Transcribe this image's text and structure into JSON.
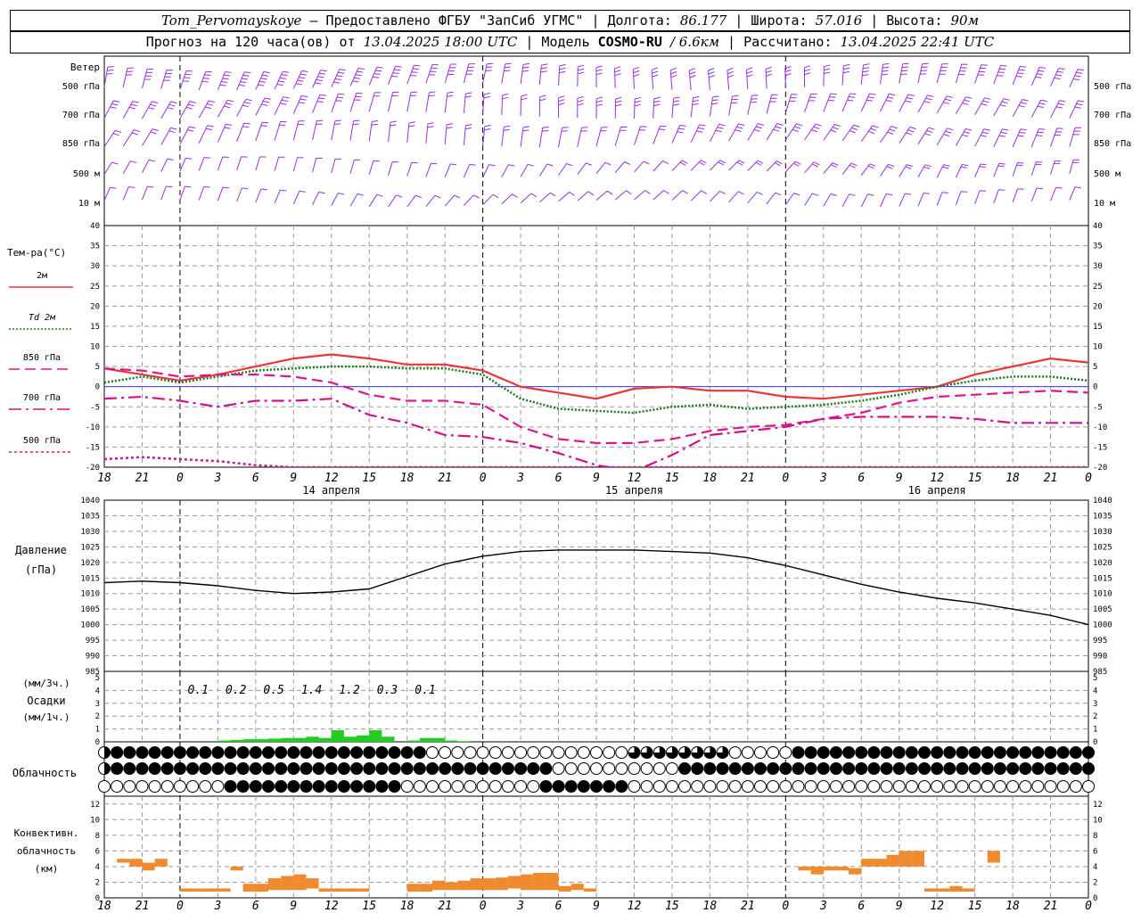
{
  "header": {
    "station": "Tom_Pervomayskoye",
    "provided_by": "– Предоставлено ФГБУ \"ЗапСиб УГМС\" |",
    "lon_label": "Долгота:",
    "lon": "86.177",
    "lat_label": "| Широта:",
    "lat": "57.016",
    "alt_label": "| Высота:",
    "alt": "90м",
    "forecast_label": "Прогноз на 120 часа(ов) от",
    "forecast_start": "13.04.2025 18:00 UTC",
    "model_label": "| Модель",
    "model": "COSMO-RU",
    "model_res": "/ 6.6км",
    "computed_label": "| Рассчитано:",
    "computed": "13.04.2025 22:41 UTC"
  },
  "time_axis": {
    "hour_labels": [
      "18",
      "21",
      "0",
      "3",
      "6",
      "9",
      "12",
      "15",
      "18",
      "21",
      "0",
      "3",
      "6",
      "9",
      "12",
      "15",
      "18",
      "21",
      "0",
      "3",
      "6",
      "9",
      "12",
      "15",
      "18",
      "21",
      "0"
    ],
    "day_labels": [
      "14 апреля",
      "15 апреля",
      "16 апреля"
    ]
  },
  "wind_panel": {
    "title": "Ветер",
    "levels": [
      "500 гПа",
      "700 гПа",
      "850 гПа",
      "500 м",
      "10 м"
    ],
    "color": "#9a2fe0"
  },
  "colors": {
    "t2m": "#e8353a",
    "td2m": "#1a7a1a",
    "t850": "#e0148c",
    "t700": "#d1118a",
    "t500": "#c81a8a",
    "pressure": "#000000",
    "precip": "#22cc22",
    "conv": "#ef8a2e",
    "zero_line": "#3a3aff"
  },
  "temp_legend": [
    {
      "label": "2м",
      "style": "t2m"
    },
    {
      "label": "Td 2м",
      "style": "td2m"
    },
    {
      "label": "850 гПа",
      "style": "t850"
    },
    {
      "label": "700 гПа",
      "style": "t700"
    },
    {
      "label": "500 гПа",
      "style": "t500"
    }
  ],
  "pressure_title": [
    "Давление",
    "(гПа)"
  ],
  "precip_title": [
    "(мм/3ч.)",
    "Осадки",
    "(мм/1ч.)"
  ],
  "precip_3h_labels": [
    "0.1",
    "0.2",
    "0.5",
    "1.4",
    "1.2",
    "0.3",
    "0.1"
  ],
  "cloud_title": "Облачность",
  "conv_title": [
    "Конвективн.",
    "облачность",
    "(км)"
  ],
  "chart_data": [
    {
      "type": "line",
      "name": "temperature",
      "ylabel": "Тем-ра(°C)",
      "ylim": [
        -20,
        40
      ],
      "yticks": [
        -20,
        -15,
        -10,
        -5,
        0,
        5,
        10,
        15,
        20,
        25,
        30,
        35,
        40
      ],
      "x_hours": [
        0,
        3,
        6,
        9,
        12,
        15,
        18,
        21,
        24,
        27,
        30,
        33,
        36,
        39,
        42,
        45,
        48,
        51,
        54,
        57,
        60,
        63,
        66,
        69,
        72,
        75,
        78
      ],
      "series": [
        {
          "name": "2м",
          "values": [
            4.5,
            3.0,
            1.5,
            3.0,
            5.0,
            7.0,
            8.0,
            7.0,
            5.5,
            5.5,
            4.0,
            0.0,
            -1.5,
            -3.0,
            -0.5,
            0.0,
            -1.0,
            -1.0,
            -2.5,
            -3.0,
            -2.0,
            -1.0,
            0.0,
            3.0,
            5.0,
            7.0,
            6.0
          ]
        },
        {
          "name": "Td 2м",
          "values": [
            1.0,
            2.5,
            1.0,
            2.5,
            4.0,
            4.5,
            5.0,
            5.0,
            4.5,
            4.5,
            3.0,
            -3.0,
            -5.5,
            -6.0,
            -6.5,
            -5.0,
            -4.5,
            -5.5,
            -5.0,
            -4.5,
            -3.5,
            -2.0,
            0.0,
            1.5,
            2.5,
            2.5,
            1.5
          ]
        },
        {
          "name": "850 гПа",
          "values": [
            4.5,
            4.0,
            2.5,
            3.0,
            3.0,
            2.5,
            1.0,
            -2.0,
            -3.5,
            -3.5,
            -4.5,
            -10.0,
            -13.0,
            -14.0,
            -14.0,
            -13.0,
            -11.0,
            -10.0,
            -9.5,
            -8.0,
            -6.5,
            -4.0,
            -2.5,
            -2.0,
            -1.5,
            -1.0,
            -1.5
          ]
        },
        {
          "name": "700 гПа",
          "values": [
            -3.0,
            -2.5,
            -3.5,
            -5.0,
            -3.5,
            -3.5,
            -3.0,
            -7.0,
            -9.0,
            -12.0,
            -12.5,
            -14.0,
            -16.5,
            -19.5,
            -21.0,
            -17.0,
            -12.0,
            -11.0,
            -10.0,
            -8.0,
            -7.5,
            -7.5,
            -7.5,
            -8.0,
            -9.0,
            -9.0,
            -9.0
          ]
        },
        {
          "name": "500 гПа",
          "values": [
            -18.0,
            -17.5,
            -18.0,
            -18.5,
            -19.5,
            -20.0,
            -20.0,
            -20.0,
            -20.0,
            -20.0,
            -20.0,
            -20.0,
            -20.0,
            -20.0,
            -20.0,
            -20.0,
            -20.0,
            -20.0,
            -20.0,
            -20.0,
            -20.0,
            -20.0,
            -20.0,
            -20.0,
            -20.0,
            -20.0,
            -20.0
          ]
        }
      ]
    },
    {
      "type": "line",
      "name": "pressure",
      "ylim": [
        985,
        1040
      ],
      "yticks": [
        985,
        990,
        995,
        1000,
        1005,
        1010,
        1015,
        1020,
        1025,
        1030,
        1035,
        1040
      ],
      "x_hours": [
        0,
        3,
        6,
        9,
        12,
        15,
        18,
        21,
        24,
        27,
        30,
        33,
        36,
        39,
        42,
        45,
        48,
        51,
        54,
        57,
        60,
        63,
        66,
        69,
        72,
        75,
        78
      ],
      "series": [
        {
          "name": "Давление",
          "values": [
            1013.5,
            1014,
            1013.5,
            1012.5,
            1011,
            1010,
            1010.5,
            1011.5,
            1015.5,
            1019.5,
            1022,
            1023.5,
            1024,
            1024,
            1024,
            1023.5,
            1023,
            1021.5,
            1019,
            1016,
            1013,
            1010.5,
            1008.5,
            1007,
            1005,
            1003,
            1000
          ]
        }
      ]
    },
    {
      "type": "bar",
      "name": "precipitation_1h",
      "ylim": [
        0,
        5
      ],
      "yticks": [
        0,
        1,
        2,
        3,
        4,
        5
      ],
      "x_hours": [
        9,
        10,
        11,
        12,
        13,
        14,
        15,
        16,
        17,
        18,
        19,
        20,
        21,
        22,
        23,
        24,
        25,
        26,
        27,
        28
      ],
      "values": [
        0.1,
        0.15,
        0.2,
        0.2,
        0.25,
        0.3,
        0.3,
        0.4,
        0.3,
        0.9,
        0.4,
        0.5,
        0.9,
        0.4,
        0.0,
        0.1,
        0.3,
        0.3,
        0.1,
        0.05
      ]
    },
    {
      "type": "bar",
      "name": "convective_cloud_km",
      "ylim": [
        0,
        13
      ],
      "yticks": [
        0,
        2,
        4,
        6,
        8,
        10,
        12
      ],
      "bars": [
        {
          "h0": 1,
          "h1": 2,
          "lo": 4.5,
          "hi": 5
        },
        {
          "h0": 2,
          "h1": 3,
          "lo": 4,
          "hi": 5
        },
        {
          "h0": 3,
          "h1": 4,
          "lo": 3.5,
          "hi": 4.5
        },
        {
          "h0": 4,
          "h1": 5,
          "lo": 4,
          "hi": 5
        },
        {
          "h0": 6,
          "h1": 7,
          "lo": 0.8,
          "hi": 1.2
        },
        {
          "h0": 7,
          "h1": 8,
          "lo": 0.8,
          "hi": 1.2
        },
        {
          "h0": 8,
          "h1": 9,
          "lo": 0.8,
          "hi": 1.2
        },
        {
          "h0": 9,
          "h1": 10,
          "lo": 0.8,
          "hi": 1.2
        },
        {
          "h0": 10,
          "h1": 11,
          "lo": 3.5,
          "hi": 4
        },
        {
          "h0": 11,
          "h1": 12,
          "lo": 0.8,
          "hi": 1.8
        },
        {
          "h0": 12,
          "h1": 13,
          "lo": 0.8,
          "hi": 1.8
        },
        {
          "h0": 13,
          "h1": 14,
          "lo": 1,
          "hi": 2.5
        },
        {
          "h0": 14,
          "h1": 15,
          "lo": 1,
          "hi": 2.8
        },
        {
          "h0": 15,
          "h1": 16,
          "lo": 1,
          "hi": 3
        },
        {
          "h0": 16,
          "h1": 17,
          "lo": 1.2,
          "hi": 2.5
        },
        {
          "h0": 17,
          "h1": 18,
          "lo": 0.8,
          "hi": 1.2
        },
        {
          "h0": 18,
          "h1": 19,
          "lo": 0.8,
          "hi": 1.2
        },
        {
          "h0": 19,
          "h1": 20,
          "lo": 0.8,
          "hi": 1.2
        },
        {
          "h0": 20,
          "h1": 21,
          "lo": 0.8,
          "hi": 1.2
        },
        {
          "h0": 24,
          "h1": 25,
          "lo": 0.8,
          "hi": 1.8
        },
        {
          "h0": 25,
          "h1": 26,
          "lo": 0.8,
          "hi": 1.8
        },
        {
          "h0": 26,
          "h1": 27,
          "lo": 1,
          "hi": 2.2
        },
        {
          "h0": 27,
          "h1": 28,
          "lo": 1,
          "hi": 2
        },
        {
          "h0": 28,
          "h1": 29,
          "lo": 1,
          "hi": 2.2
        },
        {
          "h0": 29,
          "h1": 30,
          "lo": 1,
          "hi": 2.5
        },
        {
          "h0": 30,
          "h1": 31,
          "lo": 1,
          "hi": 2.5
        },
        {
          "h0": 31,
          "h1": 32,
          "lo": 1,
          "hi": 2.6
        },
        {
          "h0": 32,
          "h1": 33,
          "lo": 1.2,
          "hi": 2.8
        },
        {
          "h0": 33,
          "h1": 34,
          "lo": 1,
          "hi": 3
        },
        {
          "h0": 34,
          "h1": 35,
          "lo": 1,
          "hi": 3.2
        },
        {
          "h0": 35,
          "h1": 36,
          "lo": 1,
          "hi": 3.2
        },
        {
          "h0": 36,
          "h1": 37,
          "lo": 0.8,
          "hi": 1.5
        },
        {
          "h0": 37,
          "h1": 38,
          "lo": 1,
          "hi": 1.8
        },
        {
          "h0": 38,
          "h1": 39,
          "lo": 0.8,
          "hi": 1.2
        },
        {
          "h0": 55,
          "h1": 56,
          "lo": 3.5,
          "hi": 4
        },
        {
          "h0": 56,
          "h1": 57,
          "lo": 3,
          "hi": 4
        },
        {
          "h0": 57,
          "h1": 58,
          "lo": 3.5,
          "hi": 4
        },
        {
          "h0": 58,
          "h1": 59,
          "lo": 3.5,
          "hi": 4
        },
        {
          "h0": 59,
          "h1": 60,
          "lo": 3,
          "hi": 3.8
        },
        {
          "h0": 60,
          "h1": 61,
          "lo": 4,
          "hi": 5
        },
        {
          "h0": 61,
          "h1": 62,
          "lo": 4,
          "hi": 5
        },
        {
          "h0": 62,
          "h1": 63,
          "lo": 4,
          "hi": 5.5
        },
        {
          "h0": 63,
          "h1": 64,
          "lo": 4,
          "hi": 6
        },
        {
          "h0": 64,
          "h1": 65,
          "lo": 4,
          "hi": 6
        },
        {
          "h0": 65,
          "h1": 66,
          "lo": 0.8,
          "hi": 1.2
        },
        {
          "h0": 66,
          "h1": 67,
          "lo": 0.8,
          "hi": 1.2
        },
        {
          "h0": 67,
          "h1": 68,
          "lo": 0.8,
          "hi": 1.5
        },
        {
          "h0": 68,
          "h1": 69,
          "lo": 0.8,
          "hi": 1.2
        },
        {
          "h0": 70,
          "h1": 71,
          "lo": 4.5,
          "hi": 6
        }
      ]
    }
  ]
}
